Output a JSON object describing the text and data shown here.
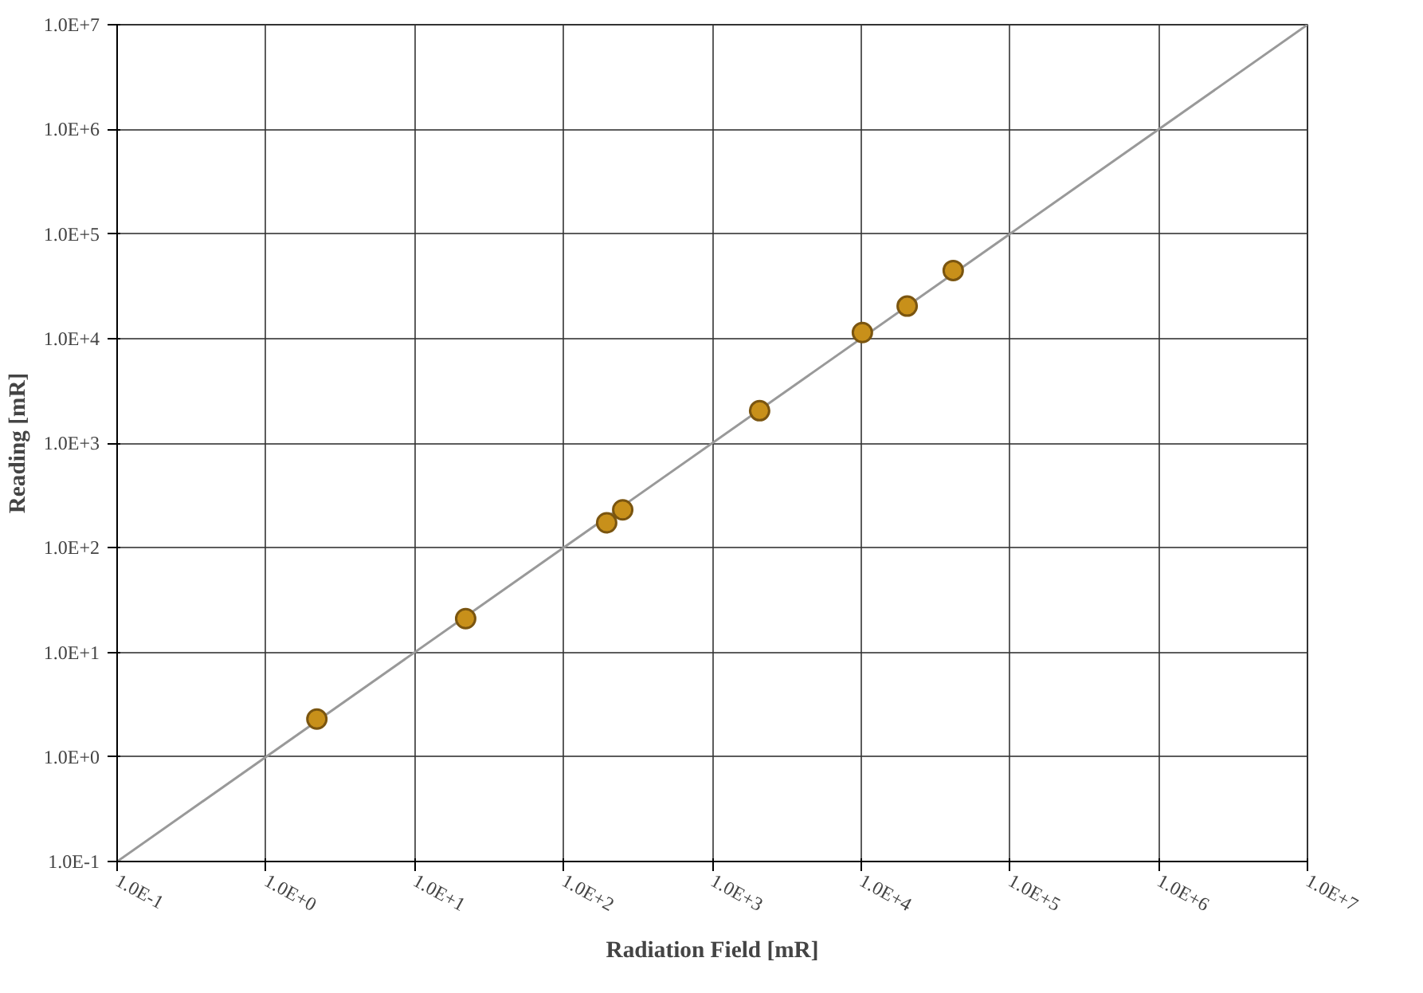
{
  "chart_data": {
    "type": "scatter",
    "xlabel": "Radiation Field [mR]",
    "ylabel": "Reading [mR]",
    "log": "xy",
    "grid": true,
    "marker": "circle",
    "xlim": [
      0.1,
      10000000
    ],
    "ylim": [
      0.1,
      10000000
    ],
    "xticks": [
      {
        "value": 0.1,
        "label": "1.0E-1"
      },
      {
        "value": 1,
        "label": "1.0E+0"
      },
      {
        "value": 10,
        "label": "1.0E+1"
      },
      {
        "value": 100,
        "label": "1.0E+2"
      },
      {
        "value": 1000,
        "label": "1.0E+3"
      },
      {
        "value": 10000,
        "label": "1.0E+4"
      },
      {
        "value": 100000,
        "label": "1.0E+5"
      },
      {
        "value": 1000000,
        "label": "1.0E+6"
      },
      {
        "value": 10000000,
        "label": "1.0E+7"
      }
    ],
    "yticks": [
      {
        "value": 0.1,
        "label": "1.0E-1"
      },
      {
        "value": 1,
        "label": "1.0E+0"
      },
      {
        "value": 10,
        "label": "1.0E+1"
      },
      {
        "value": 100,
        "label": "1.0E+2"
      },
      {
        "value": 1000,
        "label": "1.0E+3"
      },
      {
        "value": 10000,
        "label": "1.0E+4"
      },
      {
        "value": 100000,
        "label": "1.0E+5"
      },
      {
        "value": 1000000,
        "label": "1.0E+6"
      },
      {
        "value": 10000000,
        "label": "1.0E+7"
      }
    ],
    "series": [
      {
        "type": "line",
        "marker": "none",
        "color": "#999999",
        "x": [
          0.1,
          10000000
        ],
        "values": [
          0.1,
          10000000
        ]
      },
      {
        "color": "#c8901a",
        "x": [
          2.2,
          22,
          195,
          250,
          2080,
          10200,
          20400,
          41600
        ],
        "values": [
          2.3,
          21,
          173,
          230,
          2040,
          11400,
          20400,
          44700
        ]
      }
    ]
  }
}
